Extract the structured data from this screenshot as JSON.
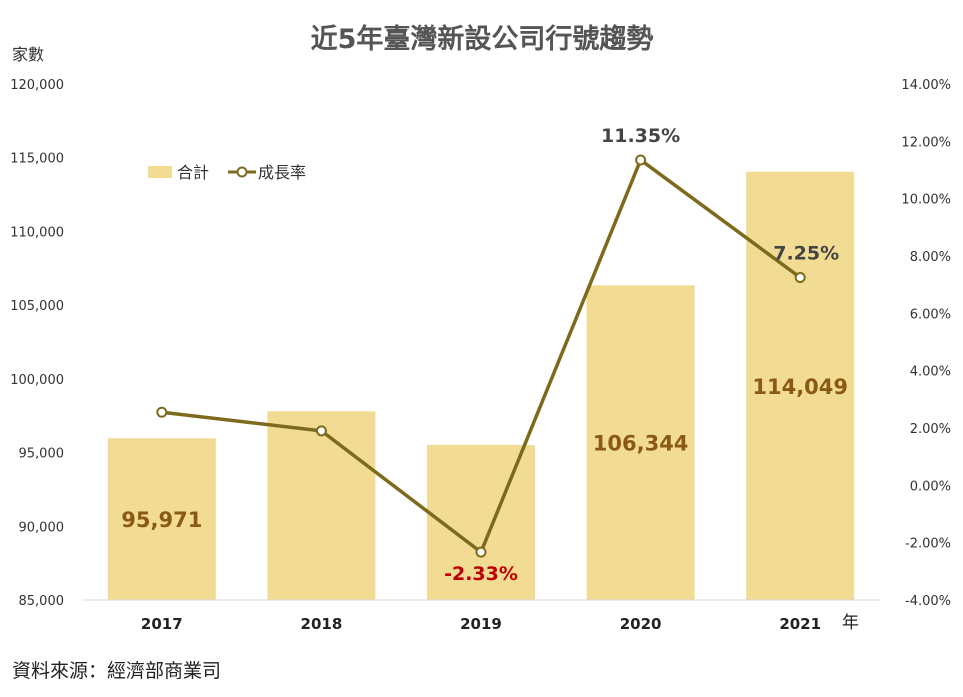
{
  "chart_data": {
    "type": "bar",
    "title": "近5年臺灣新設公司行號趨勢",
    "categories": [
      "2017",
      "2018",
      "2019",
      "2020",
      "2021"
    ],
    "x_unit": "年",
    "series": [
      {
        "name": "合計",
        "type": "bar",
        "axis": "left",
        "values": [
          95971,
          97800,
          95520,
          106344,
          114049
        ],
        "color": "#F2DC94"
      },
      {
        "name": "成長率",
        "type": "line",
        "axis": "right",
        "values": [
          2.55,
          1.9,
          -2.33,
          11.35,
          7.25
        ],
        "color": "#7D6A1C"
      }
    ],
    "left_axis": {
      "label": "家數",
      "ylim": [
        85000,
        120000
      ],
      "ticks": [
        "85,000",
        "90,000",
        "95,000",
        "100,000",
        "105,000",
        "110,000",
        "115,000",
        "120,000"
      ]
    },
    "right_axis": {
      "ylim": [
        -4,
        14
      ],
      "ticks": [
        "-4.00%",
        "-2.00%",
        "0.00%",
        "2.00%",
        "4.00%",
        "6.00%",
        "8.00%",
        "10.00%",
        "12.00%",
        "14.00%"
      ]
    },
    "bar_labels": [
      {
        "index": 0,
        "text": "95,971",
        "color": "#8A5A14"
      },
      {
        "index": 3,
        "text": "106,344",
        "color": "#8A5A14"
      },
      {
        "index": 4,
        "text": "114,049",
        "color": "#8A5A14"
      }
    ],
    "line_labels": [
      {
        "index": 2,
        "text": "-2.33%",
        "color": "#C00000"
      },
      {
        "index": 3,
        "text": "11.35%",
        "color": "#444444"
      },
      {
        "index": 4,
        "text": "7.25%",
        "color": "#444444"
      }
    ],
    "legend_position": "top-left",
    "grid": false
  },
  "source": "資料來源：經濟部商業司"
}
